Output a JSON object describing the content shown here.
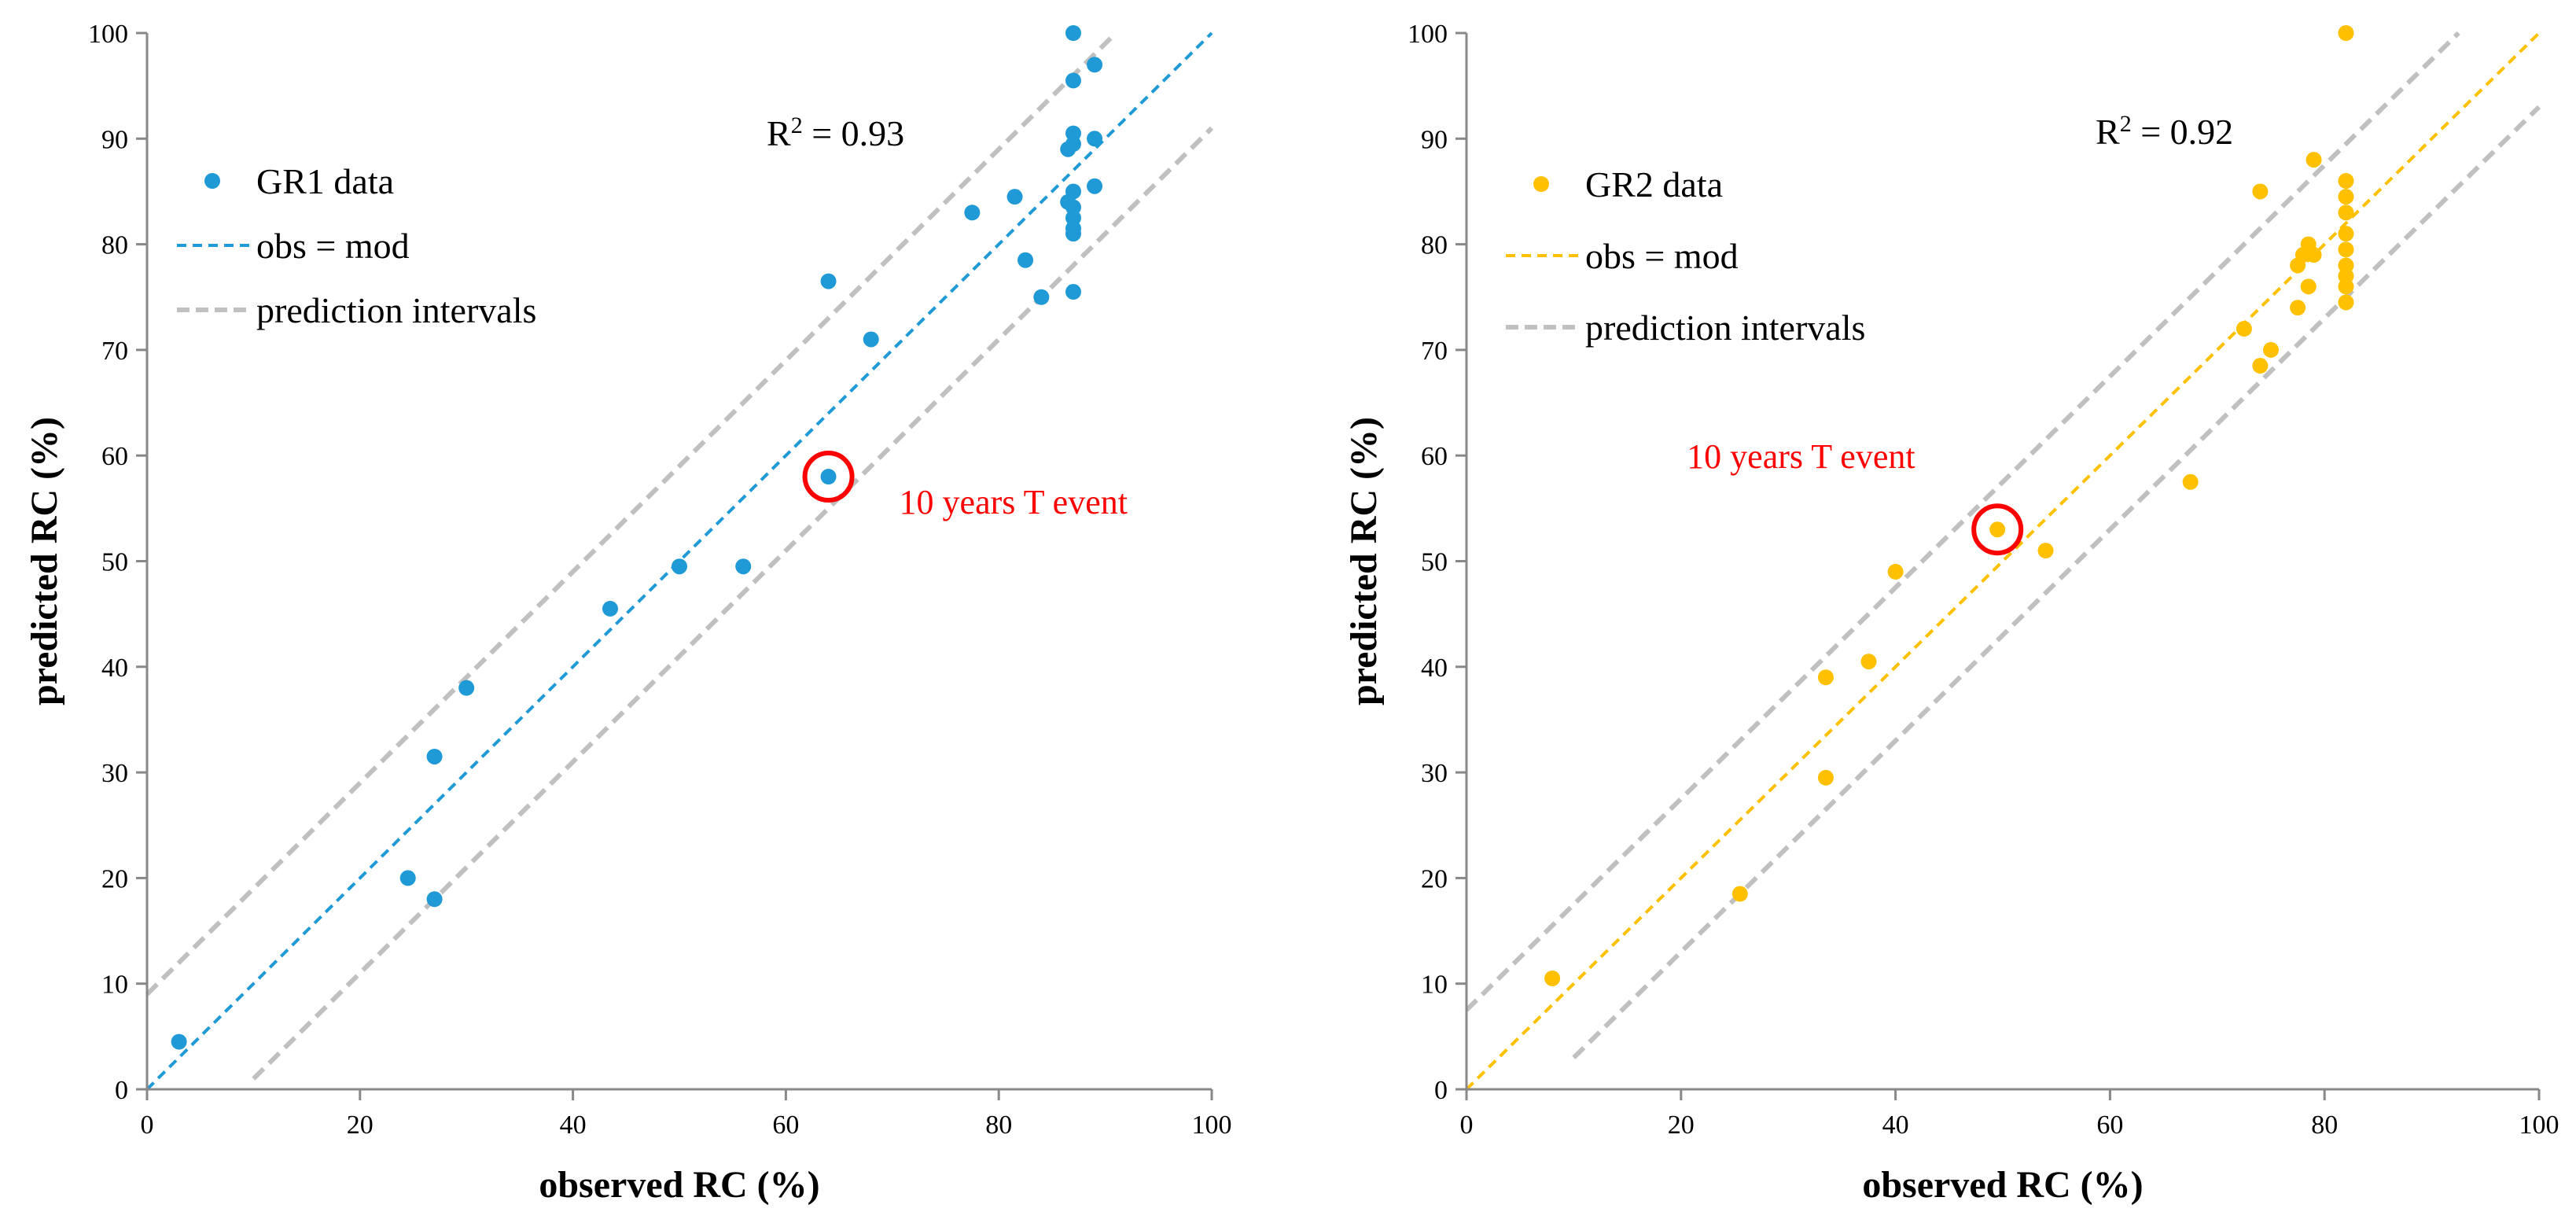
{
  "chart_data": [
    {
      "type": "scatter",
      "title": "",
      "xlabel": "observed RC (%)",
      "ylabel": "predicted RC (%)",
      "xlim": [
        0,
        100
      ],
      "ylim": [
        0,
        100
      ],
      "xticks": [
        "0",
        "20",
        "40",
        "60",
        "80",
        "100"
      ],
      "yticks": [
        "0",
        "10",
        "20",
        "30",
        "40",
        "50",
        "60",
        "70",
        "80",
        "90",
        "100"
      ],
      "grid": false,
      "legend_position": "top-left",
      "legend": [
        "GR1 data",
        "obs = mod",
        "prediction intervals"
      ],
      "r2_label": "R",
      "r2_sup": "2",
      "r2_value": " = 0.93",
      "annotation": "10 years T event",
      "highlight_point": [
        64,
        58
      ],
      "series": [
        {
          "name": "GR1 data",
          "color": "#1f9ad6",
          "x": [
            3,
            24.5,
            27,
            27,
            30,
            43.5,
            50,
            56,
            64,
            64,
            68,
            77.5,
            81.5,
            82.5,
            84,
            86.5,
            86.5,
            87,
            87,
            87,
            87,
            87,
            87,
            87,
            87,
            87,
            87,
            89,
            89,
            89
          ],
          "y": [
            4.5,
            20,
            31.5,
            18,
            38,
            45.5,
            49.5,
            49.5,
            76.5,
            58,
            71,
            83,
            84.5,
            78.5,
            75,
            89,
            84,
            100,
            95.5,
            90.5,
            85,
            83.5,
            82.5,
            81.5,
            81,
            75.5,
            89.5,
            97,
            90,
            85.5
          ]
        },
        {
          "name": "obs = mod",
          "color": "#1f9ad6",
          "line": [
            [
              0,
              0
            ],
            [
              100,
              100
            ]
          ]
        },
        {
          "name": "prediction intervals",
          "color": "#c0c0c0",
          "upper": [
            [
              0,
              9
            ],
            [
              91,
              100
            ]
          ],
          "lower": [
            [
              10,
              1
            ],
            [
              100,
              91
            ]
          ]
        }
      ]
    },
    {
      "type": "scatter",
      "title": "",
      "xlabel": "observed RC (%)",
      "ylabel": "predicted RC (%)",
      "xlim": [
        0,
        100
      ],
      "ylim": [
        0,
        100
      ],
      "xticks": [
        "0",
        "20",
        "40",
        "60",
        "80",
        "100"
      ],
      "yticks": [
        "0",
        "10",
        "20",
        "30",
        "40",
        "50",
        "60",
        "70",
        "80",
        "90",
        "100"
      ],
      "grid": false,
      "legend_position": "top-left",
      "legend": [
        "GR2 data",
        "obs = mod",
        "prediction intervals"
      ],
      "r2_label": "R",
      "r2_sup": "2",
      "r2_value": " = 0.92",
      "annotation": "10 years T event",
      "highlight_point": [
        49.5,
        53
      ],
      "series": [
        {
          "name": "GR2 data",
          "color": "#ffc000",
          "x": [
            8,
            25.5,
            33.5,
            33.5,
            37.5,
            40,
            49.5,
            54,
            67.5,
            72.5,
            74,
            74,
            75,
            77.5,
            77.5,
            78,
            78.5,
            78.5,
            79,
            79,
            82,
            82,
            82,
            82,
            82,
            82,
            82,
            82,
            82,
            82
          ],
          "y": [
            10.5,
            18.5,
            39,
            29.5,
            40.5,
            49,
            53,
            51,
            57.5,
            72,
            85,
            68.5,
            70,
            78,
            74,
            79,
            76,
            80,
            88,
            79,
            100,
            86,
            84.5,
            83,
            81,
            79.5,
            78,
            77,
            76,
            74.5
          ]
        },
        {
          "name": "obs = mod",
          "color": "#ffc000",
          "line": [
            [
              0,
              0
            ],
            [
              100,
              100
            ]
          ]
        },
        {
          "name": "prediction intervals",
          "color": "#c0c0c0",
          "upper": [
            [
              0,
              7.5
            ],
            [
              92.5,
              100
            ]
          ],
          "lower": [
            [
              10,
              3
            ],
            [
              100,
              93
            ]
          ]
        }
      ]
    }
  ]
}
